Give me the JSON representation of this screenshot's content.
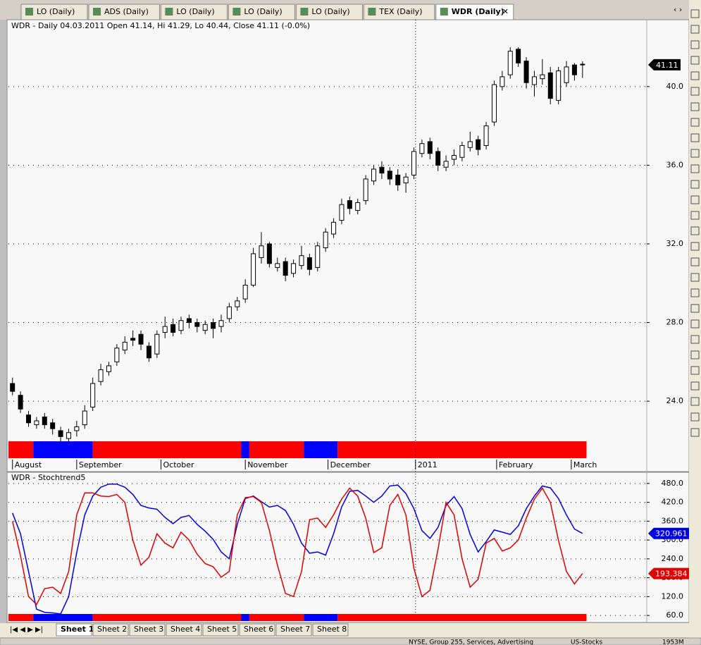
{
  "tabs": [
    "LO (Daily)",
    "ADS (Daily)",
    "LO (Daily)",
    "LO (Daily)",
    "LO (Daily)",
    "TEX (Daily)",
    "WDR (Daily)"
  ],
  "chart_data": [
    {
      "type": "candlestick",
      "title": "WDR - Daily 04.03.2011 Open 41.14, Hi 41.29, Lo 40.44, Close 41.11 (-0.0%)",
      "open": [
        24.9,
        24.3,
        23.3,
        22.8,
        23.2,
        22.9,
        22.5,
        22.1,
        22.5,
        22.8,
        23.7,
        25.0,
        25.5,
        26.0,
        26.6,
        27.2,
        27.4,
        26.8,
        26.4,
        27.5,
        27.9,
        27.6,
        28.2,
        28.0,
        27.6,
        28.0,
        27.8,
        28.2,
        28.8,
        29.2,
        29.9,
        31.3,
        32.0,
        30.8,
        31.1,
        30.5,
        30.9,
        31.3,
        30.8,
        31.8,
        32.5,
        33.2,
        34.2,
        33.7,
        34.2,
        35.2,
        35.9,
        35.7,
        35.5,
        35.1,
        35.5,
        36.6,
        37.2,
        36.7,
        35.9,
        36.3,
        36.4,
        36.9,
        37.3,
        37.0,
        38.2,
        40.0,
        40.6,
        41.9,
        41.3,
        40.1,
        40.4,
        40.7,
        39.3,
        40.2,
        41.1,
        41.14
      ],
      "high": [
        25.2,
        24.5,
        23.5,
        23.2,
        23.4,
        23.1,
        22.7,
        22.6,
        23.0,
        23.8,
        25.2,
        25.9,
        26.0,
        26.9,
        27.3,
        27.6,
        27.6,
        27.0,
        27.6,
        28.3,
        28.2,
        28.3,
        28.4,
        28.2,
        28.1,
        28.2,
        28.4,
        29.0,
        29.3,
        30.2,
        31.8,
        32.6,
        32.1,
        31.3,
        31.3,
        31.2,
        31.9,
        31.5,
        32.1,
        32.8,
        33.3,
        34.3,
        34.4,
        34.3,
        35.5,
        36.0,
        36.2,
        35.9,
        35.8,
        35.6,
        36.9,
        37.3,
        37.4,
        36.9,
        36.5,
        36.8,
        37.2,
        37.7,
        37.5,
        38.2,
        40.3,
        40.8,
        42.0,
        42.0,
        41.5,
        40.8,
        41.4,
        41.0,
        41.0,
        41.3,
        41.2,
        41.29
      ],
      "low": [
        24.3,
        23.4,
        22.7,
        22.6,
        22.6,
        22.3,
        21.9,
        21.9,
        22.2,
        22.6,
        23.5,
        24.8,
        25.3,
        25.8,
        26.4,
        26.8,
        26.6,
        26.0,
        26.2,
        27.2,
        27.3,
        27.4,
        27.7,
        27.5,
        27.4,
        27.2,
        27.5,
        28.0,
        28.6,
        29.0,
        29.8,
        31.0,
        30.8,
        30.6,
        30.1,
        30.3,
        30.7,
        30.4,
        30.6,
        31.6,
        32.3,
        33.0,
        33.5,
        33.5,
        34.0,
        35.0,
        35.3,
        35.0,
        34.7,
        34.6,
        35.3,
        36.4,
        36.3,
        35.7,
        35.7,
        36.0,
        36.2,
        36.7,
        36.5,
        36.8,
        38.0,
        39.8,
        40.4,
        41.0,
        39.9,
        39.5,
        40.1,
        39.1,
        39.1,
        40.0,
        40.3,
        40.44
      ],
      "close": [
        24.5,
        23.6,
        22.9,
        23.0,
        22.8,
        22.6,
        22.2,
        22.4,
        22.7,
        23.5,
        24.9,
        25.6,
        25.8,
        26.7,
        27.0,
        27.1,
        26.9,
        26.2,
        27.4,
        27.8,
        27.5,
        28.1,
        28.0,
        27.8,
        27.9,
        27.7,
        28.1,
        28.8,
        29.1,
        29.9,
        31.5,
        31.9,
        31.0,
        31.0,
        30.4,
        31.0,
        31.4,
        30.7,
        31.9,
        32.6,
        33.1,
        34.0,
        33.8,
        34.1,
        35.3,
        35.8,
        35.6,
        35.3,
        35.0,
        35.4,
        36.7,
        37.1,
        36.6,
        36.0,
        36.2,
        36.5,
        37.0,
        37.2,
        36.8,
        38.0,
        40.1,
        40.5,
        41.8,
        41.2,
        40.2,
        40.5,
        40.6,
        39.4,
        40.8,
        41.0,
        40.6,
        41.11
      ],
      "xlim": [
        -0.5,
        79
      ],
      "xticks": [
        {
          "value": 0,
          "label": "August"
        },
        {
          "value": 8,
          "label": "September"
        },
        {
          "value": 18.5,
          "label": "October"
        },
        {
          "value": 29,
          "label": "November"
        },
        {
          "value": 39.3,
          "label": "December"
        },
        {
          "value": 50.2,
          "label": "2011"
        },
        {
          "value": 60.3,
          "label": "February"
        },
        {
          "value": 69.6,
          "label": "March"
        }
      ],
      "ylim": [
        21.1,
        43.4
      ],
      "yticks": [
        {
          "value": 24,
          "label": "24.0"
        },
        {
          "value": 28,
          "label": "28.0"
        },
        {
          "value": 32,
          "label": "32.0"
        },
        {
          "value": 36,
          "label": "36.0"
        },
        {
          "value": 40,
          "label": "40.0"
        }
      ],
      "grid": true,
      "up_color": "#ffffff",
      "down_color": "#000000",
      "ribbon": [
        {
          "from": -0.5,
          "to": 2.6,
          "color": "#ff0000"
        },
        {
          "from": 2.6,
          "to": 10,
          "color": "#0000ff"
        },
        {
          "from": 10,
          "to": 28.5,
          "color": "#ff0000"
        },
        {
          "from": 28.5,
          "to": 29.5,
          "color": "#0000ff"
        },
        {
          "from": 29.5,
          "to": 36.3,
          "color": "#ff0000"
        },
        {
          "from": 36.3,
          "to": 40.5,
          "color": "#0000ff"
        },
        {
          "from": 40.5,
          "to": 71.5,
          "color": "#ff0000"
        }
      ]
    },
    {
      "type": "line",
      "title": "WDR - Stochtrend5",
      "series": [
        {
          "color": "#0000e0",
          "values": [
            386,
            320,
            200,
            80,
            70,
            68,
            65,
            120,
            260,
            380,
            440,
            468,
            478,
            478,
            468,
            445,
            410,
            402,
            398,
            372,
            352,
            372,
            378,
            350,
            328,
            302,
            262,
            240,
            350,
            432,
            440,
            422,
            405,
            410,
            394,
            350,
            290,
            258,
            262,
            252,
            320,
            405,
            455,
            458,
            440,
            420,
            440,
            472,
            475,
            448,
            400,
            330,
            305,
            340,
            410,
            438,
            400,
            318,
            262,
            295,
            332,
            325,
            318,
            345,
            400,
            440,
            472,
            466,
            432,
            380,
            335,
            320.961
          ]
        },
        {
          "color": "#e00000",
          "values": [
            360,
            250,
            120,
            95,
            145,
            150,
            130,
            200,
            380,
            450,
            450,
            440,
            438,
            445,
            420,
            300,
            220,
            245,
            320,
            290,
            275,
            325,
            300,
            255,
            225,
            215,
            182,
            200,
            380,
            435,
            438,
            420,
            330,
            220,
            130,
            120,
            200,
            365,
            370,
            340,
            380,
            430,
            465,
            440,
            370,
            260,
            275,
            410,
            445,
            380,
            210,
            120,
            140,
            270,
            420,
            380,
            240,
            150,
            175,
            290,
            305,
            265,
            275,
            300,
            370,
            430,
            465,
            420,
            300,
            200,
            160,
            193.384
          ]
        }
      ],
      "xlim": [
        -0.5,
        79
      ],
      "ylim": [
        40,
        511
      ],
      "yticks": [
        {
          "value": 60,
          "label": "60.0"
        },
        {
          "value": 120,
          "label": "120.0"
        },
        {
          "value": 180,
          "label": "180.0"
        },
        {
          "value": 240,
          "label": "240.0"
        },
        {
          "value": 300,
          "label": "300.0"
        },
        {
          "value": 360,
          "label": "360.0"
        },
        {
          "value": 420,
          "label": "420.0"
        },
        {
          "value": 480,
          "label": "480.0"
        }
      ],
      "grid": true,
      "ribbon": [
        {
          "from": -0.5,
          "to": 2.6,
          "color": "#ff0000"
        },
        {
          "from": 2.6,
          "to": 10,
          "color": "#0000ff"
        },
        {
          "from": 10,
          "to": 28.5,
          "color": "#ff0000"
        },
        {
          "from": 28.5,
          "to": 29.5,
          "color": "#0000ff"
        },
        {
          "from": 29.5,
          "to": 36.3,
          "color": "#ff0000"
        },
        {
          "from": 36.3,
          "to": 40.5,
          "color": "#0000ff"
        },
        {
          "from": 40.5,
          "to": 71.5,
          "color": "#ff0000"
        }
      ]
    }
  ],
  "sheets": [
    "Sheet 1",
    "Sheet 2",
    "Sheet 3",
    "Sheet 4",
    "Sheet 5",
    "Sheet 6",
    "Sheet 7",
    "Sheet 8"
  ],
  "status": [
    "NYSE, Group 255, Services, Advertising",
    "US-Stocks",
    "1953M"
  ]
}
